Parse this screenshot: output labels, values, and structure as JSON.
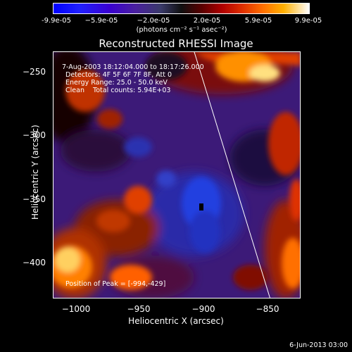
{
  "colorbar": {
    "ticks": [
      "-9.9e-05",
      "−5.9e-05",
      "−2.0e-05",
      "2.0e-05",
      "5.9e-05",
      "9.9e-05"
    ],
    "units": "(photons cm⁻² s⁻¹ asec⁻²)"
  },
  "title": "Reconstructed RHESSI Image",
  "annotations": {
    "time": "7-Aug-2003 18:12:04.000 to 18:17:26.000",
    "detectors": "Detectors: 4F 5F 6F 7F 8F, Att 0",
    "energy": "Energy Range: 25.0 - 50.0 keV",
    "clean": "Clean    Total counts: 5.94E+03",
    "peak": "Position of Peak = [-994,-429]"
  },
  "axes": {
    "xlabel": "Heliocentric X (arcsec)",
    "ylabel": "Heliocentric Y (arcsec)",
    "xticks": [
      "−1000",
      "−950",
      "−900",
      "−850"
    ],
    "yticks": [
      "−250",
      "−300",
      "−350",
      "−400"
    ]
  },
  "footer_date": "6-Jun-2013 03:00"
}
